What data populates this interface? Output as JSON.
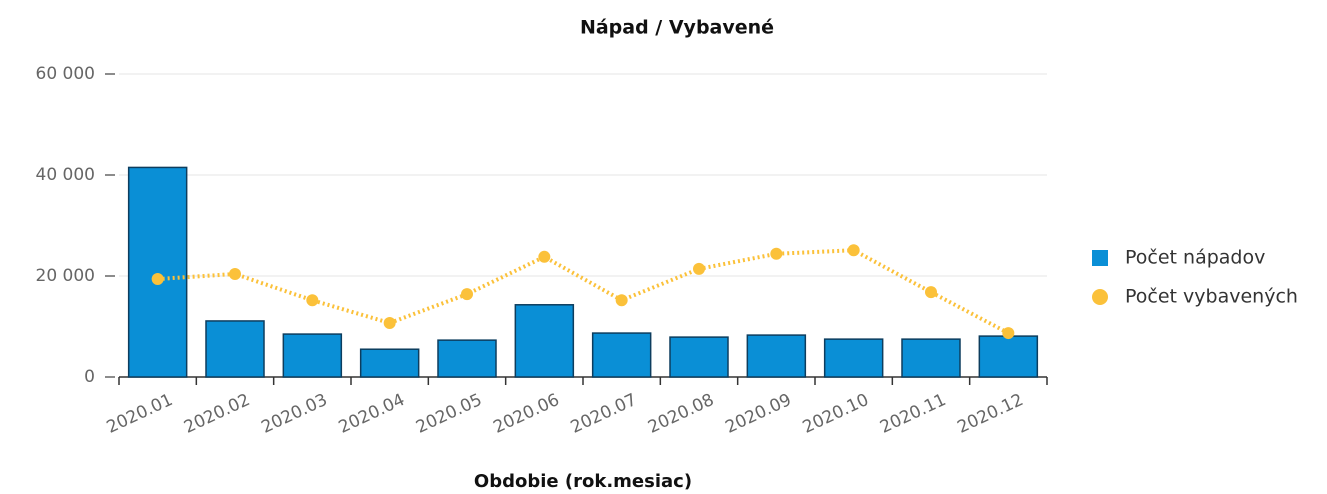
{
  "chart_data": {
    "type": "bar_line",
    "title": "Nápad / Vybavené",
    "x_label": "Obdobie (rok.mesiac)",
    "categories": [
      "2020.01",
      "2020.02",
      "2020.03",
      "2020.04",
      "2020.05",
      "2020.06",
      "2020.07",
      "2020.08",
      "2020.09",
      "2020.10",
      "2020.11",
      "2020.12"
    ],
    "series": [
      {
        "name": "Počet nápadov",
        "type": "bar",
        "color": "#0a8fd6",
        "values": [
          41500,
          11100,
          8500,
          5500,
          7300,
          14300,
          8700,
          7900,
          8300,
          7500,
          7500,
          8100
        ]
      },
      {
        "name": "Počet vybavených",
        "type": "line",
        "color": "#fbc13a",
        "values": [
          19400,
          20400,
          15200,
          10700,
          16400,
          23800,
          15200,
          21400,
          24400,
          25100,
          16800,
          8700
        ]
      }
    ],
    "ylim": [
      0,
      60000
    ],
    "yticks": [
      0,
      {
        "value": 20000,
        "label": "20 000"
      },
      {
        "value": 40000,
        "label": "40 000"
      },
      {
        "value": 60000,
        "label": "60 000"
      }
    ],
    "grid": true,
    "legend": "right"
  }
}
